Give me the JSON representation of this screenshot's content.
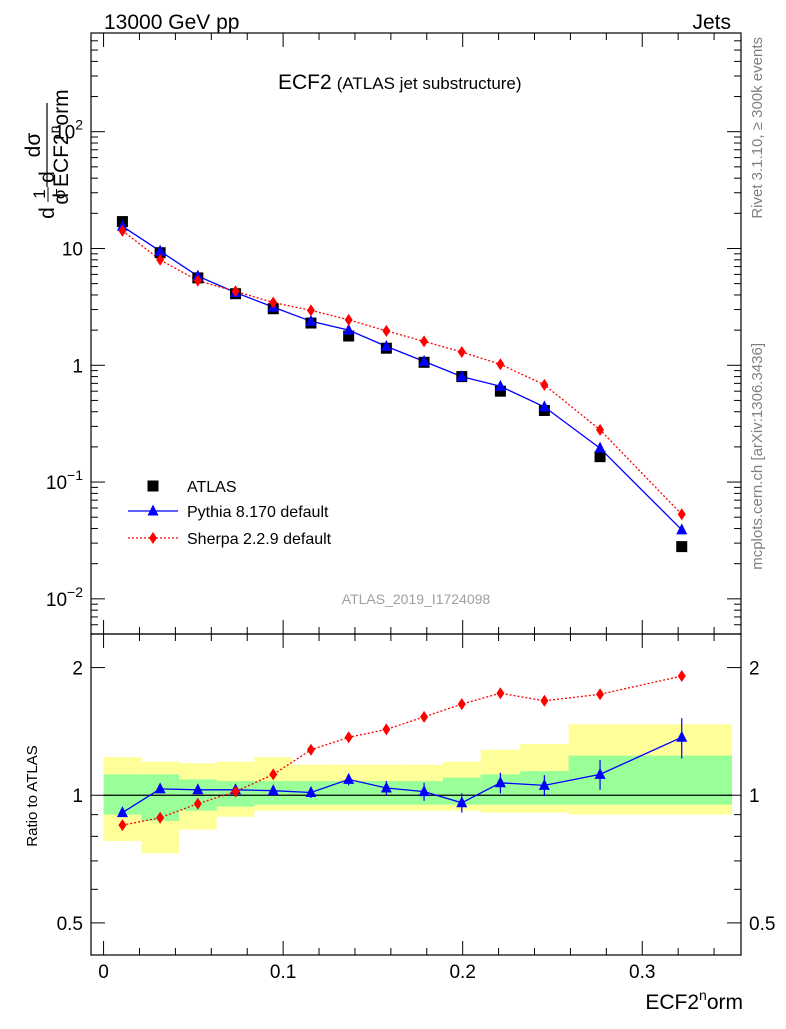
{
  "header": {
    "left": "13000 GeV pp",
    "right": "Jets"
  },
  "side_labels": {
    "rivet": "Rivet 3.1.10, ≥ 300k events",
    "mcplots": "mcplots.cern.ch [arXiv:1306.3436]"
  },
  "chart_data": [
    {
      "type": "scatter",
      "panel": "main",
      "title": "ECF2",
      "subtitle": "(ATLAS jet substructure)",
      "watermark": "ATLAS_2019_I1724098",
      "ylabel": "1/σ dσ/d ECF2norm",
      "ylabel_parts": [
        "d",
        "1",
        "σ",
        "d",
        "dσ",
        "d ECF2",
        "n",
        "orm"
      ],
      "yscale": "log",
      "ylim": [
        0.005,
        700
      ],
      "xlim": [
        -0.007,
        0.355
      ],
      "y_ticks": [
        {
          "v": 0.01,
          "base": "10",
          "exp": "−2"
        },
        {
          "v": 0.1,
          "base": "10",
          "exp": "−1"
        },
        {
          "v": 1,
          "base": "1",
          "exp": ""
        },
        {
          "v": 10,
          "base": "10",
          "exp": ""
        },
        {
          "v": 100,
          "base": "10",
          "exp": "2"
        }
      ],
      "legend_position": "bottom-left",
      "series": [
        {
          "name": "ATLAS",
          "color": "#000000",
          "marker": "square",
          "x": [
            0.0105,
            0.0315,
            0.0525,
            0.0735,
            0.0945,
            0.1155,
            0.1365,
            0.1575,
            0.1785,
            0.1995,
            0.221,
            0.2455,
            0.2765,
            0.322
          ],
          "y": [
            17.0,
            9.2,
            5.6,
            4.1,
            3.05,
            2.3,
            1.78,
            1.4,
            1.06,
            0.8,
            0.6,
            0.41,
            0.165,
            0.028
          ]
        },
        {
          "name": "Pythia 8.170 default",
          "color": "#0000ff",
          "marker": "triangle",
          "line": "solid",
          "x": [
            0.0105,
            0.0315,
            0.0525,
            0.0735,
            0.0945,
            0.1155,
            0.1365,
            0.1575,
            0.1785,
            0.1995,
            0.221,
            0.2455,
            0.2765,
            0.322
          ],
          "y": [
            15.5,
            9.5,
            5.8,
            4.2,
            3.15,
            2.38,
            2.0,
            1.45,
            1.08,
            0.8,
            0.66,
            0.44,
            0.195,
            0.039
          ]
        },
        {
          "name": "Sherpa 2.2.9 default",
          "color": "#ff0000",
          "marker": "diamond",
          "line": "dotted",
          "x": [
            0.0105,
            0.0315,
            0.0525,
            0.0735,
            0.0945,
            0.1155,
            0.1365,
            0.1575,
            0.1785,
            0.1995,
            0.221,
            0.2455,
            0.2765,
            0.322
          ],
          "y": [
            14.2,
            8.0,
            5.3,
            4.3,
            3.45,
            2.95,
            2.45,
            1.97,
            1.6,
            1.3,
            1.02,
            0.68,
            0.28,
            0.053
          ]
        }
      ]
    },
    {
      "type": "scatter",
      "panel": "ratio",
      "ylabel": "Ratio to ATLAS",
      "xlabel": "ECF2norm",
      "xlabel_parts": [
        "ECF2",
        "n",
        "orm"
      ],
      "yscale": "log",
      "ylim": [
        0.42,
        2.4
      ],
      "xlim": [
        -0.007,
        0.355
      ],
      "x_ticks": [
        {
          "v": 0,
          "label": "0"
        },
        {
          "v": 0.1,
          "label": "0.1"
        },
        {
          "v": 0.2,
          "label": "0.2"
        },
        {
          "v": 0.3,
          "label": "0.3"
        }
      ],
      "y_ticks": [
        {
          "v": 0.5,
          "label": "0.5"
        },
        {
          "v": 1,
          "label": "1"
        },
        {
          "v": 2,
          "label": "2"
        }
      ],
      "bin_edges": [
        0.0,
        0.021,
        0.042,
        0.063,
        0.084,
        0.105,
        0.126,
        0.147,
        0.168,
        0.189,
        0.21,
        0.232,
        0.259,
        0.294,
        0.35
      ],
      "band_inner": {
        "color": "#99ff99",
        "lo": [
          0.9,
          0.87,
          0.92,
          0.94,
          0.95,
          0.95,
          0.95,
          0.95,
          0.95,
          0.95,
          0.95,
          0.95,
          0.95,
          0.95
        ],
        "hi": [
          1.12,
          1.12,
          1.09,
          1.08,
          1.08,
          1.08,
          1.08,
          1.08,
          1.08,
          1.1,
          1.12,
          1.14,
          1.24,
          1.24
        ]
      },
      "band_outer": {
        "color": "#ffff99",
        "lo": [
          0.78,
          0.73,
          0.83,
          0.89,
          0.92,
          0.92,
          0.92,
          0.92,
          0.92,
          0.92,
          0.91,
          0.91,
          0.9,
          0.9
        ],
        "hi": [
          1.23,
          1.2,
          1.19,
          1.2,
          1.23,
          1.18,
          1.18,
          1.18,
          1.18,
          1.2,
          1.28,
          1.32,
          1.47,
          1.47
        ]
      },
      "series": [
        {
          "name": "Pythia 8.170 default",
          "color": "#0000ff",
          "marker": "triangle",
          "line": "solid",
          "x": [
            0.0105,
            0.0315,
            0.0525,
            0.0735,
            0.0945,
            0.1155,
            0.1365,
            0.1575,
            0.1785,
            0.1995,
            0.221,
            0.2455,
            0.2765,
            0.322
          ],
          "y": [
            0.91,
            1.035,
            1.03,
            1.03,
            1.025,
            1.015,
            1.09,
            1.04,
            1.02,
            0.96,
            1.07,
            1.055,
            1.12,
            1.37
          ],
          "err": [
            0.0,
            0.0,
            0.02,
            0.025,
            0.025,
            0.03,
            0.035,
            0.04,
            0.05,
            0.05,
            0.06,
            0.06,
            0.09,
            0.15
          ]
        },
        {
          "name": "Sherpa 2.2.9 default",
          "color": "#ff0000",
          "marker": "diamond",
          "line": "dotted",
          "x": [
            0.0105,
            0.0315,
            0.0525,
            0.0735,
            0.0945,
            0.1155,
            0.1365,
            0.1575,
            0.1785,
            0.1995,
            0.221,
            0.2455,
            0.2765,
            0.322
          ],
          "y": [
            0.85,
            0.885,
            0.955,
            1.02,
            1.12,
            1.28,
            1.37,
            1.43,
            1.53,
            1.64,
            1.74,
            1.67,
            1.73,
            1.91
          ],
          "err": [
            0.0,
            0.0,
            0.0,
            0.0,
            0.0,
            0.0,
            0.0,
            0.0,
            0.0,
            0.0,
            0.0,
            0.0,
            0.0,
            0.04
          ]
        }
      ]
    }
  ]
}
